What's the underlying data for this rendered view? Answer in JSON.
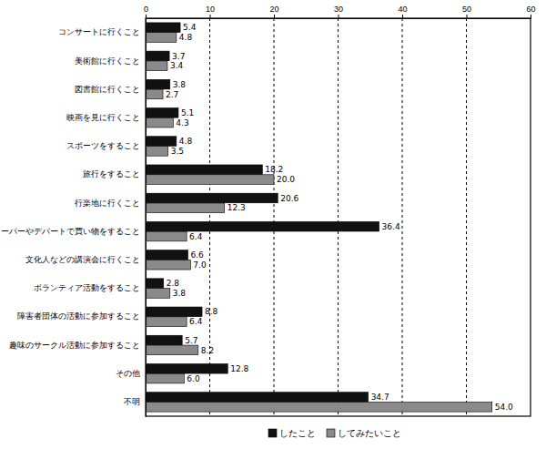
{
  "chart_data": {
    "type": "bar",
    "orientation": "horizontal",
    "categories": [
      "コンサートに行くこと",
      "美術館に行くこと",
      "図書館に行くこと",
      "映画を見に行くこと",
      "スポーツをすること",
      "旅行をすること",
      "行楽地に行くこと",
      "スーパーやデパートで買い物をすること",
      "文化人などの講演会に行くこと",
      "ボランティア活動をすること",
      "障害者団体の活動に参加すること",
      "趣味のサークル活動に参加すること",
      "その他",
      "不明"
    ],
    "series": [
      {
        "name": "したこと",
        "color": "#111111",
        "values": [
          5.4,
          3.7,
          3.8,
          5.1,
          4.8,
          18.2,
          20.6,
          36.4,
          6.6,
          2.8,
          8.8,
          5.7,
          12.8,
          34.7
        ],
        "value_labels": [
          "5.4",
          "3.7",
          "3.8",
          "5.1",
          "4.8",
          "18.2",
          "20.6",
          "36.4",
          "6.6",
          "2.8",
          "8.8",
          "5.7",
          "12.8",
          "34.7"
        ]
      },
      {
        "name": "してみたいこと",
        "color": "#8a8a8a",
        "values": [
          4.8,
          3.4,
          2.7,
          4.3,
          3.5,
          20.0,
          12.3,
          6.4,
          7.0,
          3.8,
          6.4,
          8.2,
          6.0,
          54.0
        ],
        "value_labels": [
          "4.8",
          "3.4",
          "2.7",
          "4.3",
          "3.5",
          "20.0",
          "12.3",
          "6.4",
          "7.0",
          "3.8",
          "6.4",
          "8.2",
          "6.0",
          "54.0"
        ]
      }
    ],
    "xlim": [
      0,
      60
    ],
    "xticks": [
      0,
      10,
      20,
      30,
      40,
      50,
      60
    ],
    "grid": true,
    "data_labels": true,
    "legend": "bottom"
  }
}
